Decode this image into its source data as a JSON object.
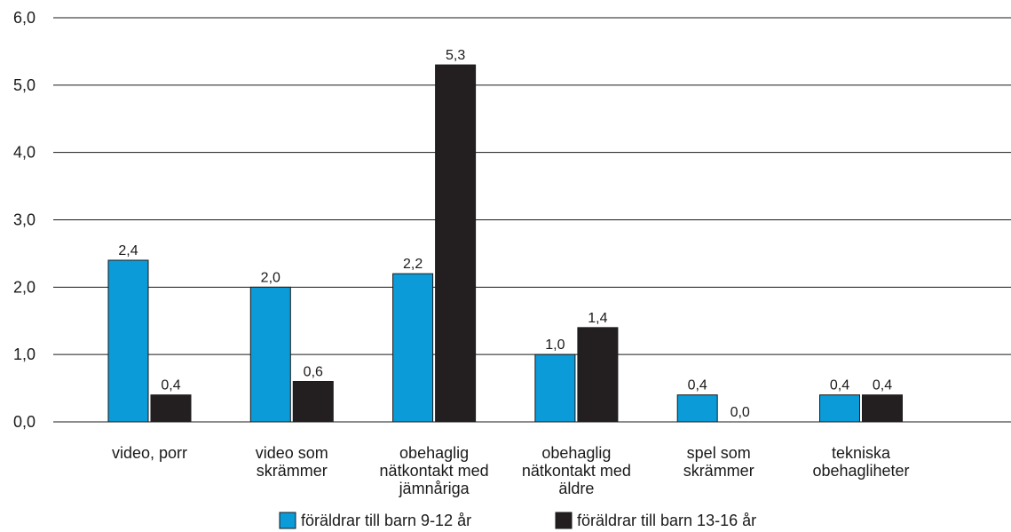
{
  "chart_data": {
    "type": "bar",
    "categories": [
      [
        "video, porr"
      ],
      [
        "video som",
        "skrämmer"
      ],
      [
        "obehaglig",
        "nätkontakt med",
        "jämnåriga"
      ],
      [
        "obehaglig",
        "nätkontakt med",
        "äldre"
      ],
      [
        "spel som",
        "skrämmer"
      ],
      [
        "tekniska",
        "obehagliheter"
      ]
    ],
    "series": [
      {
        "name": "föräldrar till barn 9-12 år",
        "color": "#0a9bd8",
        "values": [
          2.4,
          2.0,
          2.2,
          1.0,
          0.4,
          0.4
        ],
        "labels": [
          "2,4",
          "2,0",
          "2,2",
          "1,0",
          "0,4",
          "0,4"
        ]
      },
      {
        "name": "föräldrar till barn 13-16 år",
        "color": "#231f20",
        "values": [
          0.4,
          0.6,
          5.3,
          1.4,
          0.0,
          0.4
        ],
        "labels": [
          "0,4",
          "0,6",
          "5,3",
          "1,4",
          "0,0",
          "0,4"
        ]
      }
    ],
    "yticks": [
      "0,0",
      "1,0",
      "2,0",
      "3,0",
      "4,0",
      "5,0",
      "6,0"
    ],
    "ylim": [
      0,
      6
    ],
    "grid": true,
    "legend_position": "bottom"
  }
}
